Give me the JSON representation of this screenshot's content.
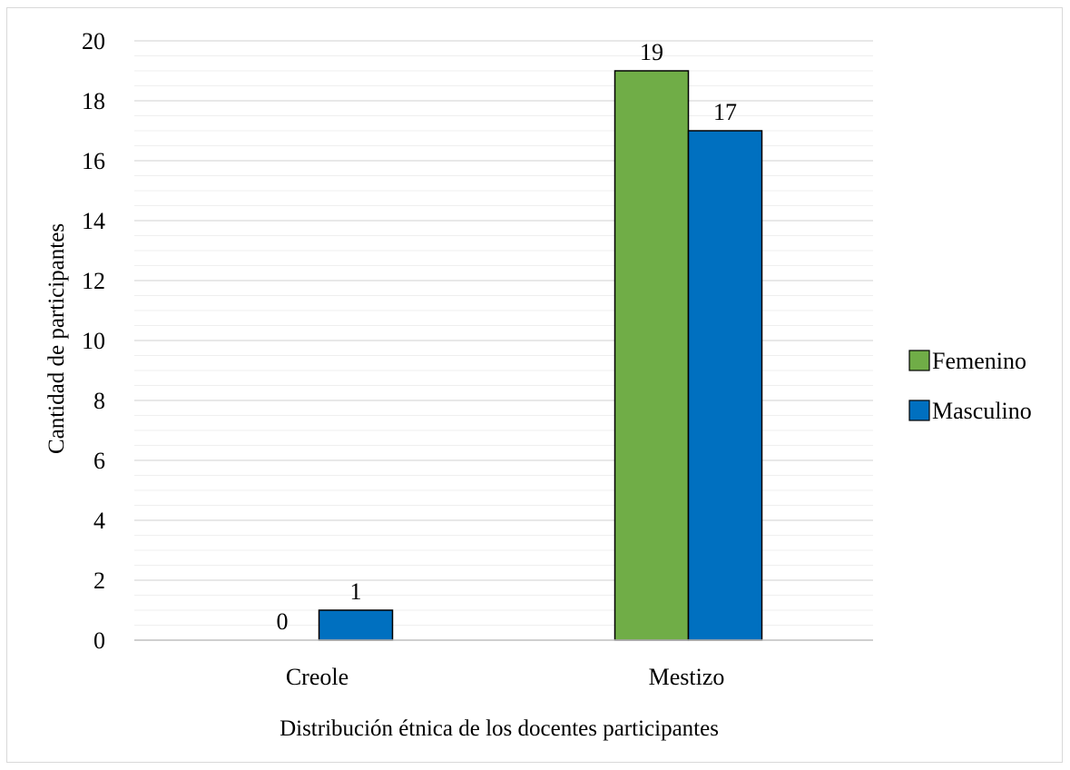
{
  "chart_data": {
    "type": "bar",
    "categories": [
      "Creole",
      "Mestizo"
    ],
    "series": [
      {
        "name": "Femenino",
        "values": [
          0,
          19
        ],
        "color": "#70ad47"
      },
      {
        "name": "Masculino",
        "values": [
          1,
          17
        ],
        "color": "#0070c0"
      }
    ],
    "xlabel": "Distribución  étnica de los docentes participantes",
    "ylabel": "Cantidad  de participantes",
    "ylim": [
      0,
      20
    ],
    "yticks": [
      0,
      2,
      4,
      6,
      8,
      10,
      12,
      14,
      16,
      18,
      20
    ],
    "grid": true,
    "legend_position": "right"
  }
}
